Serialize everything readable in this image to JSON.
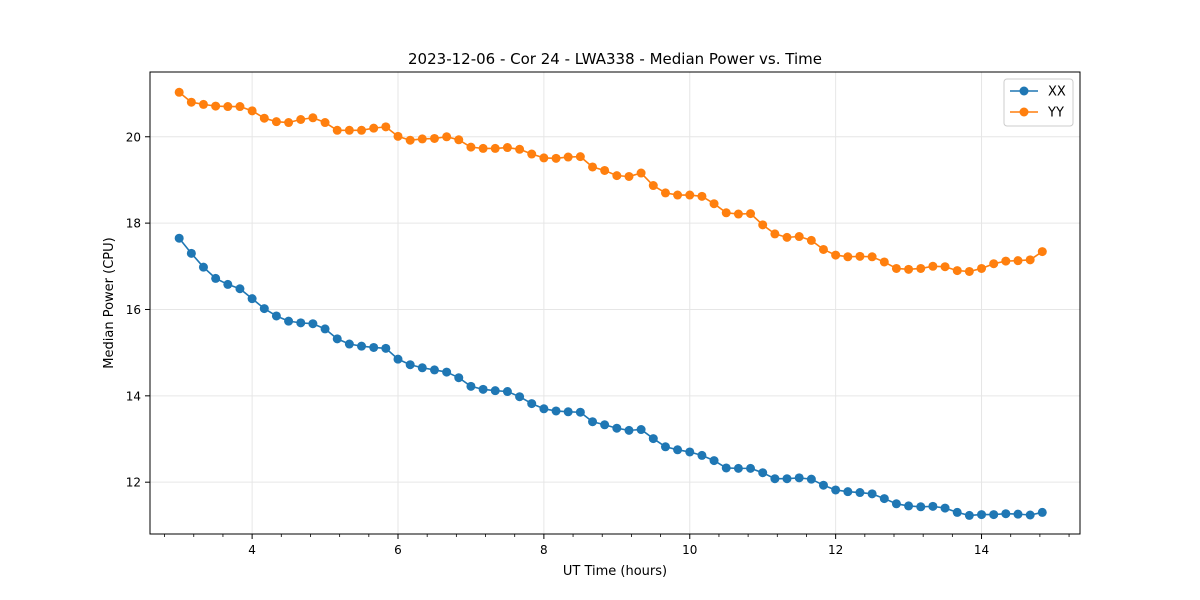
{
  "chart_data": {
    "type": "line",
    "title": "2023-12-06 - Cor 24 - LWA338 - Median Power vs. Time",
    "xlabel": "UT Time (hours)",
    "ylabel": "Median Power (CPU)",
    "xlim": [
      2.6,
      15.35
    ],
    "ylim": [
      10.8,
      21.5
    ],
    "xticks": [
      4,
      6,
      8,
      10,
      12,
      14
    ],
    "xminor_step": 0.4,
    "yticks": [
      12,
      14,
      16,
      18,
      20
    ],
    "grid": true,
    "legend_position": "top-right",
    "x": [
      3.0,
      3.167,
      3.333,
      3.5,
      3.667,
      3.833,
      4.0,
      4.167,
      4.333,
      4.5,
      4.667,
      4.833,
      5.0,
      5.167,
      5.333,
      5.5,
      5.667,
      5.833,
      6.0,
      6.167,
      6.333,
      6.5,
      6.667,
      6.833,
      7.0,
      7.167,
      7.333,
      7.5,
      7.667,
      7.833,
      8.0,
      8.167,
      8.333,
      8.5,
      8.667,
      8.833,
      9.0,
      9.167,
      9.333,
      9.5,
      9.667,
      9.833,
      10.0,
      10.167,
      10.333,
      10.5,
      10.667,
      10.833,
      11.0,
      11.167,
      11.333,
      11.5,
      11.667,
      11.833,
      12.0,
      12.167,
      12.333,
      12.5,
      12.667,
      12.833,
      13.0,
      13.167,
      13.333,
      13.5,
      13.667,
      13.833,
      14.0,
      14.167,
      14.333,
      14.5,
      14.667,
      14.833
    ],
    "series": [
      {
        "name": "XX",
        "color": "#1f77b4",
        "values": [
          17.65,
          17.3,
          16.98,
          16.72,
          16.58,
          16.48,
          16.25,
          16.02,
          15.85,
          15.73,
          15.69,
          15.67,
          15.55,
          15.32,
          15.2,
          15.15,
          15.12,
          15.1,
          14.85,
          14.72,
          14.65,
          14.6,
          14.55,
          14.42,
          14.22,
          14.15,
          14.12,
          14.1,
          13.98,
          13.82,
          13.7,
          13.65,
          13.63,
          13.62,
          13.4,
          13.33,
          13.25,
          13.2,
          13.22,
          13.01,
          12.82,
          12.75,
          12.7,
          12.62,
          12.5,
          12.33,
          12.32,
          12.32,
          12.22,
          12.08,
          12.08,
          12.1,
          12.07,
          11.93,
          11.82,
          11.78,
          11.76,
          11.73,
          11.62,
          11.5,
          11.45,
          11.43,
          11.44,
          11.4,
          11.3,
          11.23,
          11.25,
          11.25,
          11.27,
          11.26,
          11.24,
          11.3
        ]
      },
      {
        "name": "YY",
        "color": "#ff7f0e",
        "values": [
          21.03,
          20.8,
          20.75,
          20.71,
          20.7,
          20.7,
          20.6,
          20.43,
          20.35,
          20.33,
          20.4,
          20.44,
          20.33,
          20.15,
          20.15,
          20.15,
          20.2,
          20.23,
          20.01,
          19.92,
          19.95,
          19.96,
          20.0,
          19.93,
          19.76,
          19.73,
          19.73,
          19.75,
          19.71,
          19.6,
          19.51,
          19.5,
          19.53,
          19.54,
          19.3,
          19.22,
          19.1,
          19.08,
          19.16,
          18.87,
          18.7,
          18.65,
          18.65,
          18.62,
          18.45,
          18.24,
          18.21,
          18.22,
          17.96,
          17.75,
          17.67,
          17.69,
          17.6,
          17.39,
          17.26,
          17.22,
          17.23,
          17.22,
          17.1,
          16.95,
          16.93,
          16.95,
          17.0,
          16.99,
          16.9,
          16.88,
          16.95,
          17.06,
          17.12,
          17.13,
          17.15,
          17.34
        ]
      }
    ]
  }
}
